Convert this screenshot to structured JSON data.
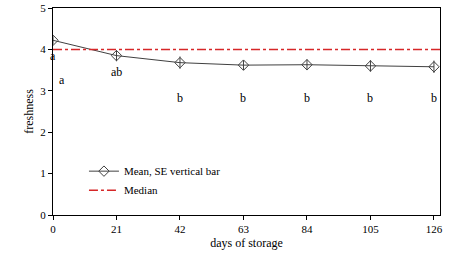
{
  "chart_data": {
    "type": "line",
    "x_label": "days of storage",
    "y_label": "freshness",
    "xlim": [
      0,
      128
    ],
    "ylim": [
      0,
      5
    ],
    "xticks": [
      0,
      21,
      42,
      63,
      84,
      105,
      126
    ],
    "yticks": [
      0,
      1,
      2,
      3,
      4,
      5
    ],
    "grid": false,
    "legend": "lower left",
    "series": [
      {
        "name": "Mean, SE vertical bar",
        "color": "#404040",
        "marker": "diamond-open",
        "line_style": "solid",
        "x": [
          0,
          21,
          42,
          63,
          84,
          105,
          126
        ],
        "values": [
          4.22,
          3.85,
          3.68,
          3.62,
          3.63,
          3.6,
          3.58
        ],
        "error": [
          0.1,
          0.13,
          0.15,
          0.12,
          0.13,
          0.14,
          0.15
        ]
      },
      {
        "name": "Median",
        "color": "#d62728",
        "marker": "none",
        "line_style": "dashdot",
        "x": [
          0,
          128
        ],
        "values": [
          4,
          4
        ]
      }
    ],
    "annotations": [
      {
        "text": "a",
        "x": 0,
        "y": 3.84
      },
      {
        "text": "a",
        "x": 3,
        "y": 3.27
      },
      {
        "text": "ab",
        "x": 21,
        "y": 3.46
      },
      {
        "text": "b",
        "x": 42,
        "y": 2.83
      },
      {
        "text": "b",
        "x": 63,
        "y": 2.83
      },
      {
        "text": "b",
        "x": 84,
        "y": 2.83
      },
      {
        "text": "b",
        "x": 105,
        "y": 2.83
      },
      {
        "text": "b",
        "x": 126,
        "y": 2.83
      }
    ]
  }
}
